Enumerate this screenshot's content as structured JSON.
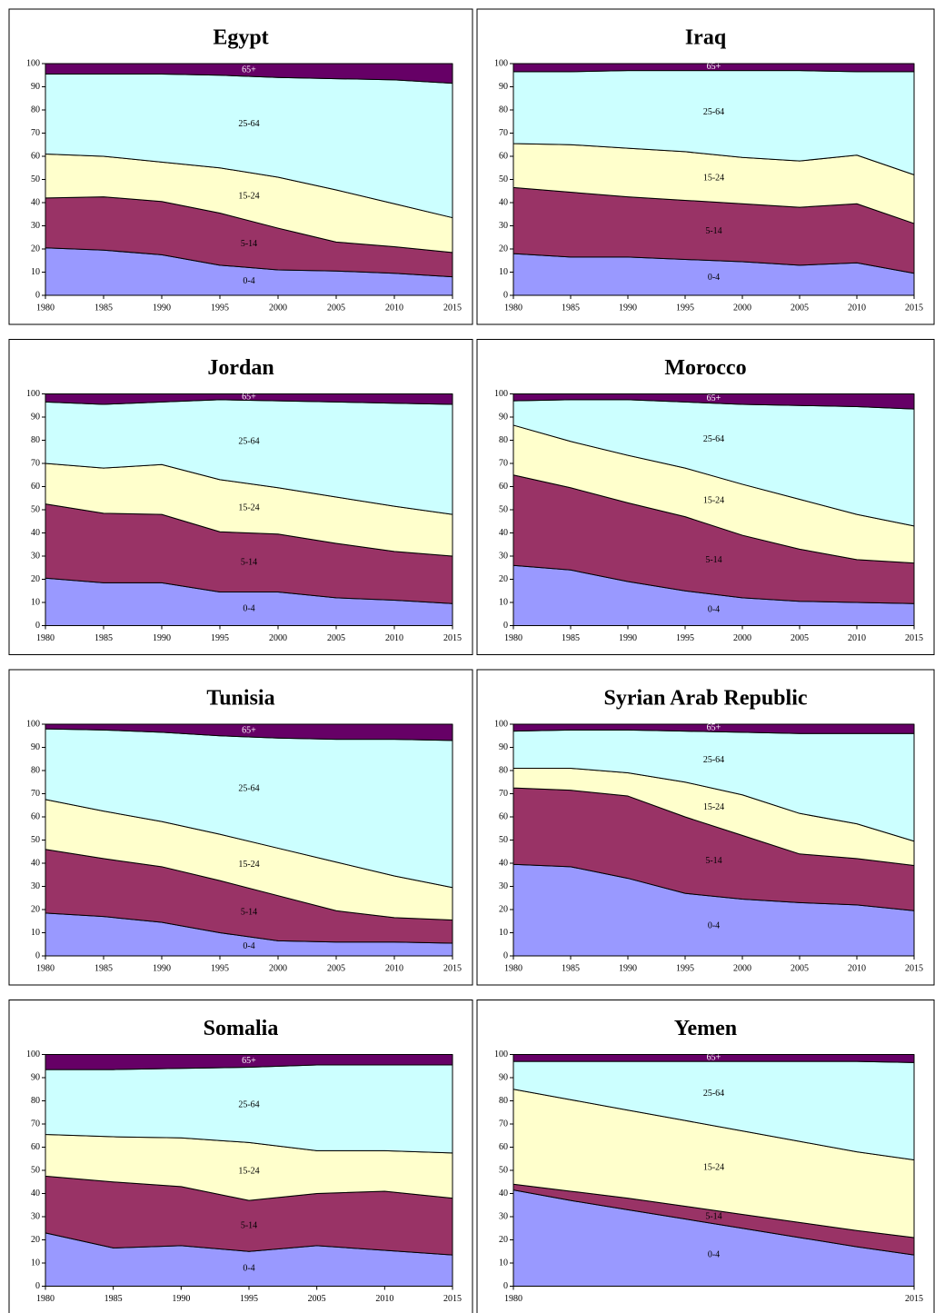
{
  "chart_data": [
    {
      "type": "area",
      "title": "Egypt",
      "categories": [
        "1980",
        "1985",
        "1990",
        "1995",
        "2000",
        "2005",
        "2010",
        "2015"
      ],
      "ylim": [
        0,
        100
      ],
      "yticks": [
        0,
        10,
        20,
        30,
        40,
        50,
        60,
        70,
        80,
        90,
        100
      ],
      "series": [
        {
          "name": "0-4",
          "color": "#9999ff",
          "values": [
            20.5,
            19.5,
            17.5,
            13,
            11,
            10.5,
            9.5,
            8
          ]
        },
        {
          "name": "5-14",
          "color": "#993366",
          "values": [
            21.5,
            23,
            23,
            22.5,
            18,
            12.5,
            11.5,
            10.5
          ]
        },
        {
          "name": "15-24",
          "color": "#ffffcc",
          "values": [
            19,
            17.5,
            17,
            19.5,
            22,
            22.5,
            18.5,
            15
          ]
        },
        {
          "name": "25-64",
          "color": "#ccffff",
          "values": [
            34.5,
            35.5,
            38,
            40,
            43,
            48,
            53.5,
            58
          ]
        },
        {
          "name": "65+",
          "color": "#660066",
          "values": [
            4.5,
            4.5,
            4.5,
            5,
            6,
            6.5,
            7,
            8.5
          ]
        }
      ]
    },
    {
      "type": "area",
      "title": "Iraq",
      "categories": [
        "1980",
        "1985",
        "1990",
        "1995",
        "2000",
        "2005",
        "2010",
        "2015"
      ],
      "ylim": [
        0,
        100
      ],
      "yticks": [
        0,
        10,
        20,
        30,
        40,
        50,
        60,
        70,
        80,
        90,
        100
      ],
      "series": [
        {
          "name": "0-4",
          "color": "#9999ff",
          "values": [
            18,
            16.5,
            16.5,
            15.5,
            14.5,
            13,
            14,
            9.5
          ]
        },
        {
          "name": "5-14",
          "color": "#993366",
          "values": [
            28.5,
            28,
            26,
            25.5,
            25,
            25,
            25.5,
            21.5
          ]
        },
        {
          "name": "15-24",
          "color": "#ffffcc",
          "values": [
            19,
            20.5,
            21,
            21,
            20,
            20,
            21,
            21
          ]
        },
        {
          "name": "25-64",
          "color": "#ccffff",
          "values": [
            31,
            31.5,
            33.5,
            35,
            37.5,
            39,
            36,
            44.5
          ]
        },
        {
          "name": "65+",
          "color": "#660066",
          "values": [
            3.5,
            3.5,
            3,
            3,
            3,
            3,
            3.5,
            3.5
          ]
        }
      ]
    },
    {
      "type": "area",
      "title": "Jordan",
      "categories": [
        "1980",
        "1985",
        "1990",
        "1995",
        "2000",
        "2005",
        "2010",
        "2015"
      ],
      "ylim": [
        0,
        100
      ],
      "yticks": [
        0,
        10,
        20,
        30,
        40,
        50,
        60,
        70,
        80,
        90,
        100
      ],
      "series": [
        {
          "name": "0-4",
          "color": "#9999ff",
          "values": [
            20.5,
            18.5,
            18.5,
            14.5,
            14.5,
            12,
            11,
            9.5
          ]
        },
        {
          "name": "5-14",
          "color": "#993366",
          "values": [
            32,
            30,
            29.5,
            26,
            25,
            23.5,
            21,
            20.5
          ]
        },
        {
          "name": "15-24",
          "color": "#ffffcc",
          "values": [
            17.5,
            19.5,
            21.5,
            22.5,
            20,
            20,
            19.5,
            18
          ]
        },
        {
          "name": "25-64",
          "color": "#ccffff",
          "values": [
            26.5,
            27.5,
            27,
            34.5,
            37.5,
            41,
            44.5,
            47.5
          ]
        },
        {
          "name": "65+",
          "color": "#660066",
          "values": [
            3.5,
            4.5,
            3.5,
            2.5,
            3,
            3.5,
            4,
            4.5
          ]
        }
      ]
    },
    {
      "type": "area",
      "title": "Morocco",
      "categories": [
        "1980",
        "1985",
        "1990",
        "1995",
        "2000",
        "2005",
        "2010",
        "2015"
      ],
      "ylim": [
        0,
        100
      ],
      "yticks": [
        0,
        10,
        20,
        30,
        40,
        50,
        60,
        70,
        80,
        90,
        100
      ],
      "series": [
        {
          "name": "0-4",
          "color": "#9999ff",
          "values": [
            26,
            24,
            19,
            15,
            12,
            10.5,
            10,
            9.5
          ]
        },
        {
          "name": "5-14",
          "color": "#993366",
          "values": [
            39,
            35.5,
            34,
            32,
            27,
            22.5,
            18.5,
            17.5
          ]
        },
        {
          "name": "15-24",
          "color": "#ffffcc",
          "values": [
            21.5,
            20,
            20.5,
            21,
            22,
            21.5,
            19.5,
            16
          ]
        },
        {
          "name": "25-64",
          "color": "#ccffff",
          "values": [
            10.5,
            18,
            24,
            28.5,
            34.5,
            40.5,
            46.5,
            50.5
          ]
        },
        {
          "name": "65+",
          "color": "#660066",
          "values": [
            3,
            2.5,
            2.5,
            3.5,
            4.5,
            5,
            5.5,
            6.5
          ]
        }
      ]
    },
    {
      "type": "area",
      "title": "Tunisia",
      "categories": [
        "1980",
        "1985",
        "1990",
        "1995",
        "2000",
        "2005",
        "2010",
        "2015"
      ],
      "ylim": [
        0,
        100
      ],
      "yticks": [
        0,
        10,
        20,
        30,
        40,
        50,
        60,
        70,
        80,
        90,
        100
      ],
      "series": [
        {
          "name": "0-4",
          "color": "#9999ff",
          "values": [
            18.5,
            17,
            14.5,
            10,
            6.5,
            6,
            6,
            5.5
          ]
        },
        {
          "name": "5-14",
          "color": "#993366",
          "values": [
            27.5,
            25,
            24,
            22.5,
            19.5,
            13.5,
            10.5,
            10
          ]
        },
        {
          "name": "15-24",
          "color": "#ffffcc",
          "values": [
            21.5,
            20.5,
            19.5,
            20,
            20.5,
            21,
            18,
            14
          ]
        },
        {
          "name": "25-64",
          "color": "#ccffff",
          "values": [
            30.5,
            35,
            38.5,
            42.5,
            47.5,
            53,
            59,
            63.5
          ]
        },
        {
          "name": "65+",
          "color": "#660066",
          "values": [
            2,
            2.5,
            3.5,
            5,
            6,
            6.5,
            6.5,
            7
          ]
        }
      ]
    },
    {
      "type": "area",
      "title": "Syrian Arab Republic",
      "categories": [
        "1980",
        "1985",
        "1990",
        "1995",
        "2000",
        "2005",
        "2010",
        "2015"
      ],
      "ylim": [
        0,
        100
      ],
      "yticks": [
        0,
        10,
        20,
        30,
        40,
        50,
        60,
        70,
        80,
        90,
        100
      ],
      "series": [
        {
          "name": "0-4",
          "color": "#9999ff",
          "values": [
            39.5,
            38.5,
            33.5,
            27,
            24.5,
            23,
            22,
            19.5
          ]
        },
        {
          "name": "5-14",
          "color": "#993366",
          "values": [
            33,
            33,
            35.5,
            33,
            27.5,
            21,
            20,
            19.5
          ]
        },
        {
          "name": "15-24",
          "color": "#ffffcc",
          "values": [
            8.5,
            9.5,
            10,
            15,
            17.5,
            17.5,
            15,
            10.5
          ]
        },
        {
          "name": "25-64",
          "color": "#ccffff",
          "values": [
            16,
            16.5,
            18.5,
            22,
            27,
            34.5,
            39,
            46.5
          ]
        },
        {
          "name": "65+",
          "color": "#660066",
          "values": [
            3,
            2.5,
            2.5,
            3,
            3.5,
            4,
            4,
            4
          ]
        }
      ]
    },
    {
      "type": "area",
      "title": "Somalia",
      "categories": [
        "1980",
        "1985",
        "1990",
        "1995",
        "2005",
        "2010",
        "2015"
      ],
      "ylim": [
        0,
        100
      ],
      "yticks": [
        0,
        10,
        20,
        30,
        40,
        50,
        60,
        70,
        80,
        90,
        100
      ],
      "series": [
        {
          "name": "0-4",
          "color": "#9999ff",
          "values": [
            23,
            16.5,
            17.5,
            15,
            17.5,
            15.5,
            13.5
          ]
        },
        {
          "name": "5-14",
          "color": "#993366",
          "values": [
            24.5,
            28.5,
            25.5,
            22,
            22.5,
            25.5,
            24.5
          ]
        },
        {
          "name": "15-24",
          "color": "#ffffcc",
          "values": [
            18,
            19.5,
            21,
            25,
            18.5,
            17.5,
            19.5
          ]
        },
        {
          "name": "25-64",
          "color": "#ccffff",
          "values": [
            28,
            29,
            30,
            32.5,
            37,
            37,
            38
          ]
        },
        {
          "name": "65+",
          "color": "#660066",
          "values": [
            6.5,
            6.5,
            6,
            5.5,
            4.5,
            4.5,
            4.5
          ]
        }
      ]
    },
    {
      "type": "area",
      "title": "Yemen",
      "categories": [
        "1980",
        null,
        null,
        null,
        null,
        null,
        null,
        "2015"
      ],
      "ylim": [
        0,
        100
      ],
      "yticks": [
        0,
        10,
        20,
        30,
        40,
        50,
        60,
        70,
        80,
        90,
        100
      ],
      "series": [
        {
          "name": "0-4",
          "color": "#9999ff",
          "values": [
            41.5,
            37,
            33,
            29,
            25,
            21,
            17,
            13.5
          ]
        },
        {
          "name": "5-14",
          "color": "#993366",
          "values": [
            2.5,
            4,
            5,
            5.5,
            6,
            6.5,
            7,
            7.5
          ]
        },
        {
          "name": "15-24",
          "color": "#ffffcc",
          "values": [
            41,
            39.5,
            38,
            37,
            36,
            35,
            34,
            33.5
          ]
        },
        {
          "name": "25-64",
          "color": "#ccffff",
          "values": [
            12,
            16.5,
            21,
            25.5,
            30,
            34.5,
            39,
            42
          ]
        },
        {
          "name": "65+",
          "color": "#660066",
          "values": [
            3,
            3,
            3,
            3,
            3,
            3,
            3,
            3.5
          ]
        }
      ]
    }
  ]
}
